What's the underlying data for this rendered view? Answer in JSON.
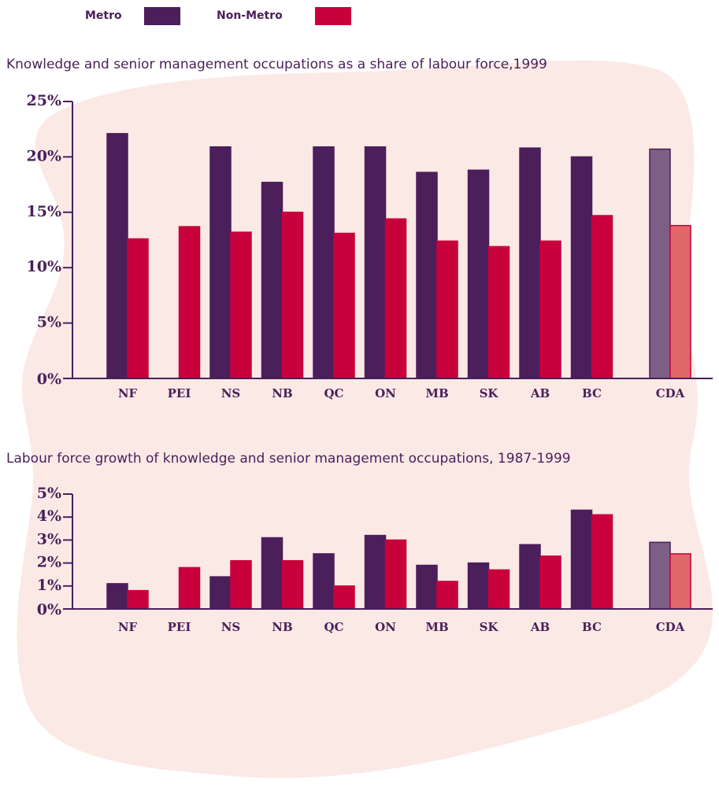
{
  "chart_data": [
    {
      "type": "bar",
      "title": "Knowledge and senior management occupations as a share of labour force,1999",
      "categories": [
        "NF",
        "PEI",
        "NS",
        "NB",
        "QC",
        "ON",
        "MB",
        "SK",
        "AB",
        "BC",
        "CDA"
      ],
      "series": [
        {
          "name": "Metro",
          "color": "#4a1f5a",
          "colors": [
            "#4a1f5a",
            "#4a1f5a",
            "#4a1f5a",
            "#4a1f5a",
            "#4a1f5a",
            "#4a1f5a",
            "#4a1f5a",
            "#4a1f5a",
            "#4a1f5a",
            "#4a1f5a",
            "#7d5f85"
          ],
          "values": [
            22.1,
            null,
            20.9,
            17.7,
            20.9,
            20.9,
            18.6,
            18.8,
            20.8,
            20.0,
            20.7
          ]
        },
        {
          "name": "Non-Metro",
          "color": "#c8003c",
          "colors": [
            "#c8003c",
            "#c8003c",
            "#c8003c",
            "#c8003c",
            "#c8003c",
            "#c8003c",
            "#c8003c",
            "#c8003c",
            "#c8003c",
            "#c8003c",
            "#e0676a"
          ],
          "values": [
            12.6,
            13.7,
            13.2,
            15.0,
            13.1,
            14.4,
            12.4,
            11.9,
            12.4,
            14.7,
            13.8
          ]
        }
      ],
      "ylim": [
        0,
        25
      ],
      "yticks": [
        {
          "value": 0,
          "label": "0%"
        },
        {
          "value": 5,
          "label": "5%"
        },
        {
          "value": 10,
          "label": "10%"
        },
        {
          "value": 15,
          "label": "15%"
        },
        {
          "value": 20,
          "label": "20%"
        },
        {
          "value": 25,
          "label": "25%"
        }
      ]
    },
    {
      "type": "bar",
      "title": "Labour force growth of knowledge and senior management occupations, 1987-1999",
      "categories": [
        "NF",
        "PEI",
        "NS",
        "NB",
        "QC",
        "ON",
        "MB",
        "SK",
        "AB",
        "BC",
        "CDA"
      ],
      "series": [
        {
          "name": "Metro",
          "color": "#4a1f5a",
          "colors": [
            "#4a1f5a",
            "#4a1f5a",
            "#4a1f5a",
            "#4a1f5a",
            "#4a1f5a",
            "#4a1f5a",
            "#4a1f5a",
            "#4a1f5a",
            "#4a1f5a",
            "#4a1f5a",
            "#7d5f85"
          ],
          "values": [
            1.1,
            null,
            1.4,
            3.1,
            2.4,
            3.2,
            1.9,
            2.0,
            2.8,
            4.3,
            2.9
          ]
        },
        {
          "name": "Non-Metro",
          "color": "#c8003c",
          "colors": [
            "#c8003c",
            "#c8003c",
            "#c8003c",
            "#c8003c",
            "#c8003c",
            "#c8003c",
            "#c8003c",
            "#c8003c",
            "#c8003c",
            "#c8003c",
            "#e0676a"
          ],
          "values": [
            0.8,
            1.8,
            2.1,
            2.1,
            1.0,
            3.0,
            1.2,
            1.7,
            2.3,
            4.1,
            2.4
          ]
        }
      ],
      "ylim": [
        0,
        5
      ],
      "yticks": [
        {
          "value": 0,
          "label": "0%"
        },
        {
          "value": 1,
          "label": "1%"
        },
        {
          "value": 2,
          "label": "2%"
        },
        {
          "value": 3,
          "label": "3%"
        },
        {
          "value": 4,
          "label": "4%"
        },
        {
          "value": 5,
          "label": "5%"
        }
      ]
    }
  ]
}
